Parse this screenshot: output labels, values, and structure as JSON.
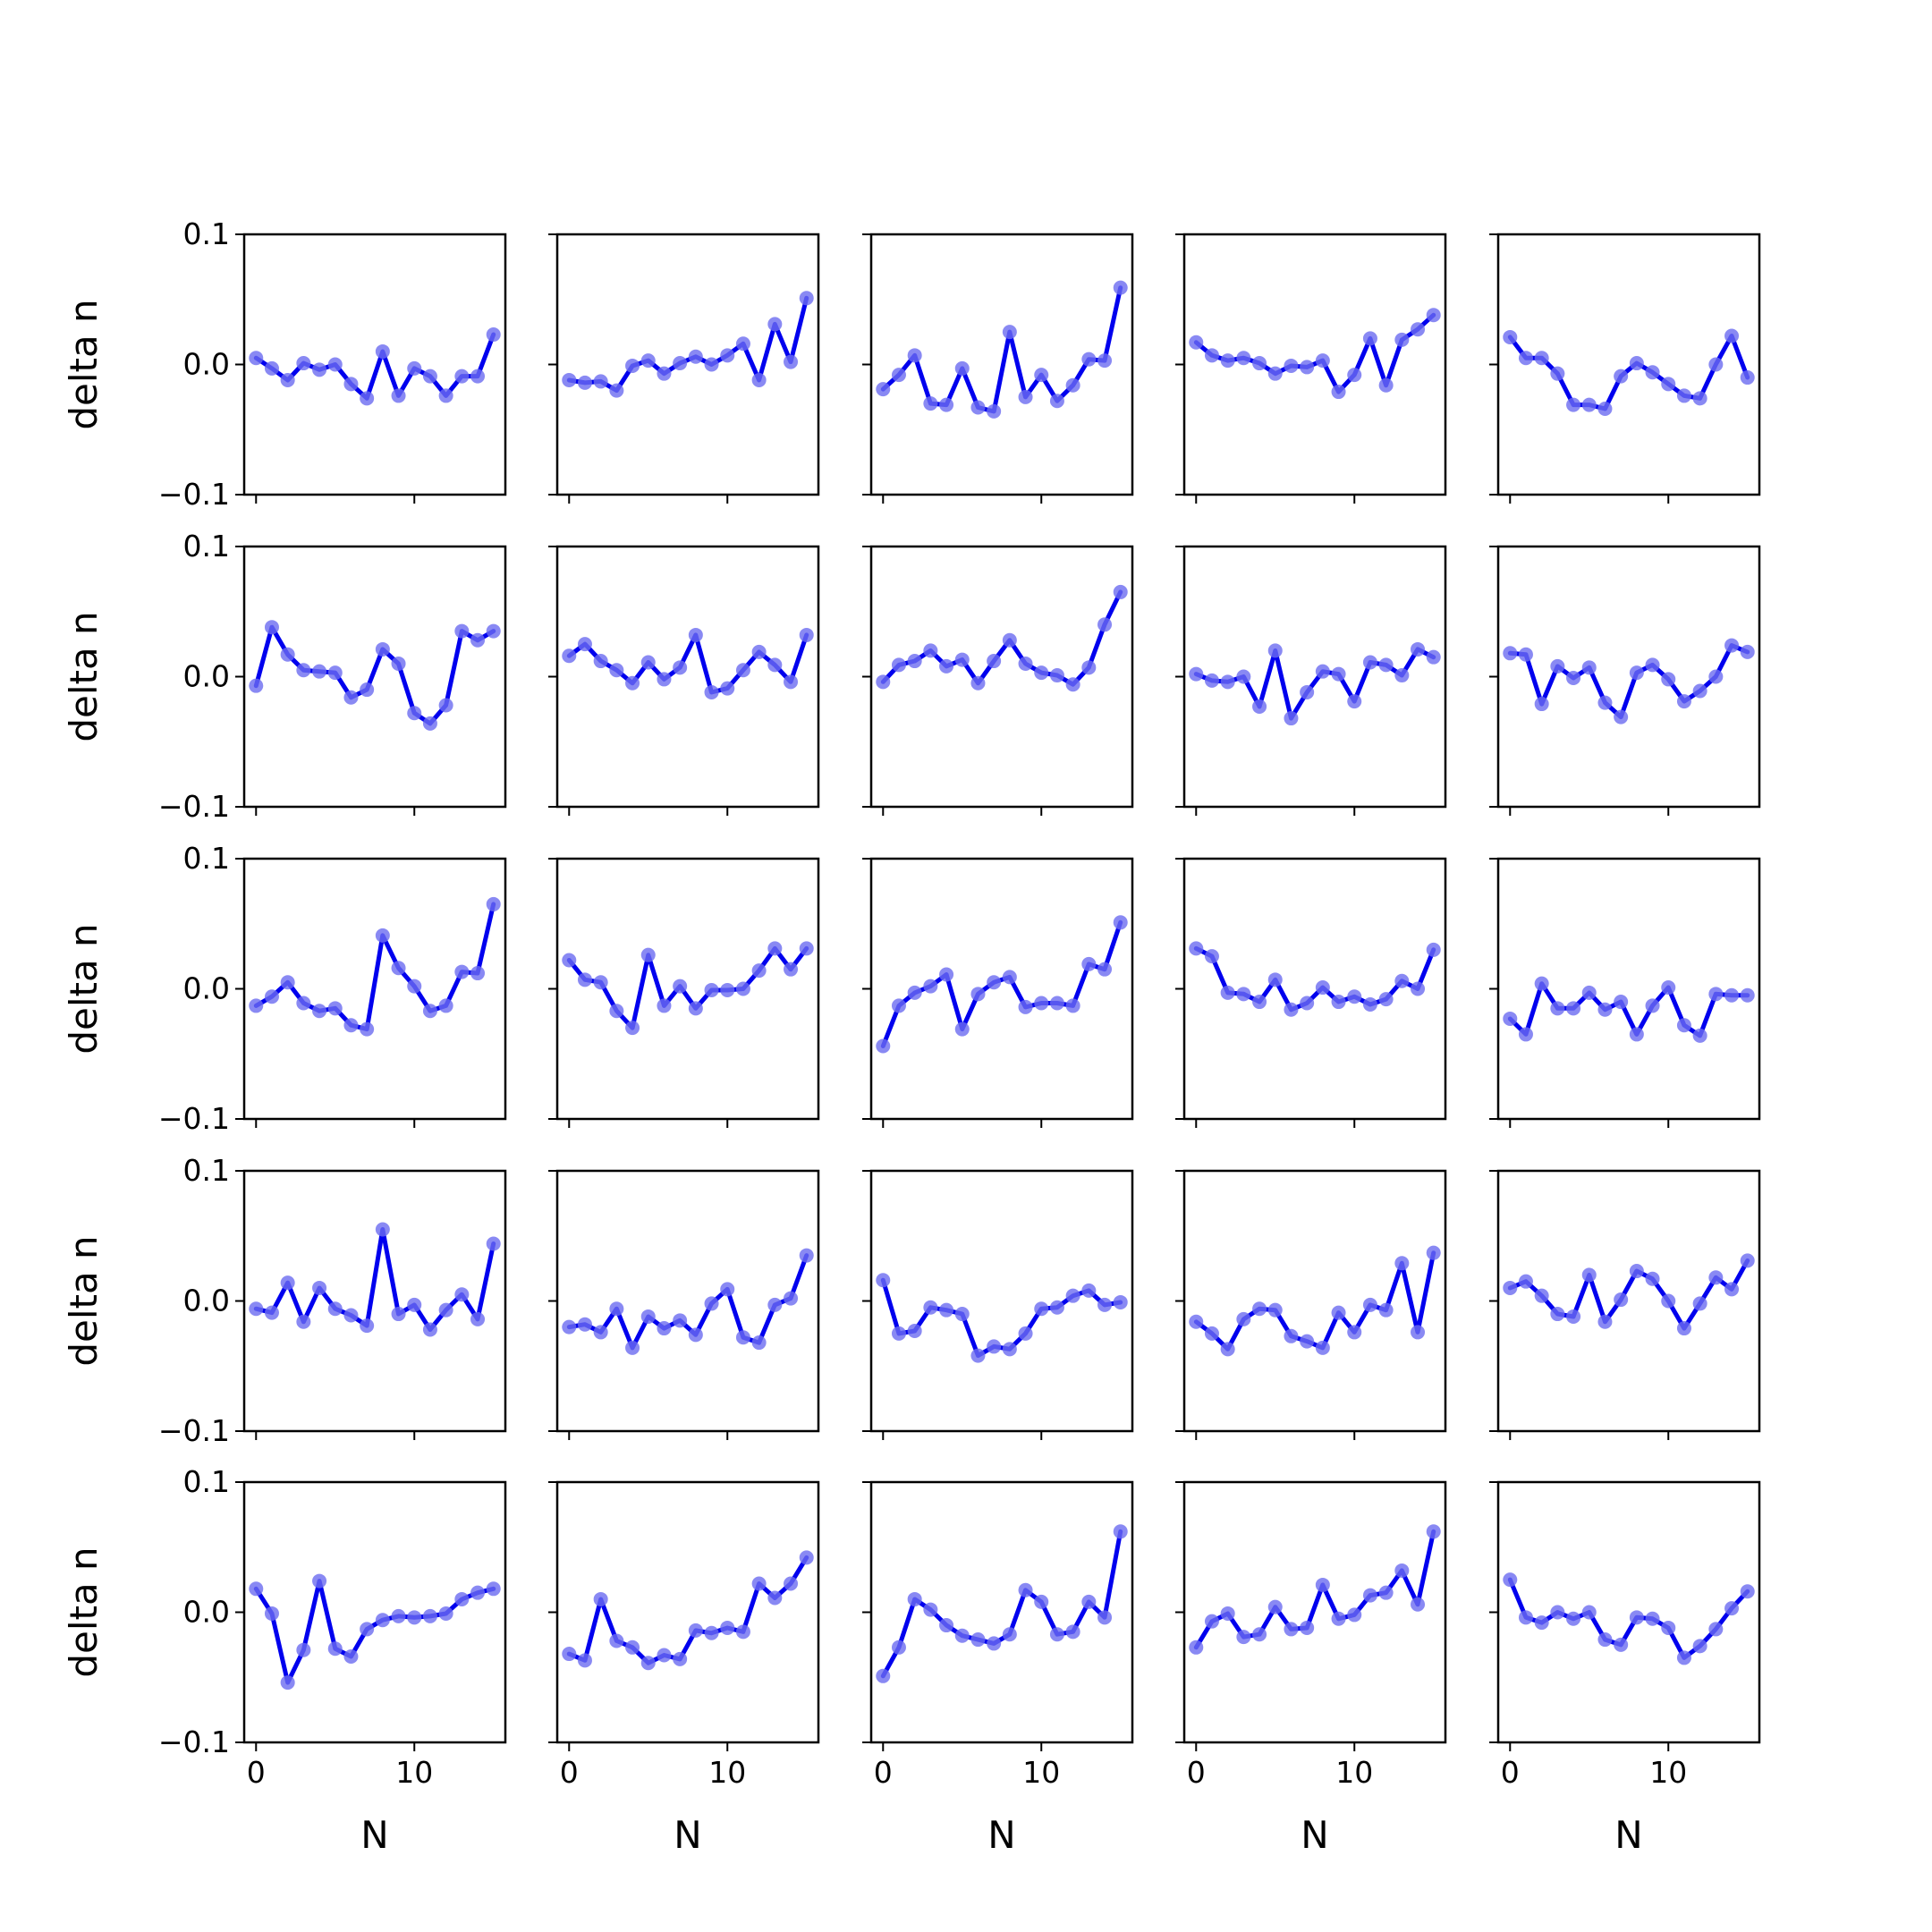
{
  "chart_data": {
    "type": "line",
    "layout": "5x5 grid of small-multiple line plots",
    "xlabel": "N",
    "ylabel": "delta n",
    "xlim": [
      -0.75,
      15.75
    ],
    "ylim": [
      -0.1,
      0.1
    ],
    "x_ticks": [
      0,
      10
    ],
    "y_ticks": [
      -0.1,
      0.0,
      0.1
    ],
    "x_tick_labels": [
      "0",
      "10"
    ],
    "y_tick_labels": [
      "−0.1",
      "0.0",
      "0.1"
    ],
    "x": [
      0,
      1,
      2,
      3,
      4,
      5,
      6,
      7,
      8,
      9,
      10,
      11,
      12,
      13,
      14,
      15
    ],
    "line_color": "#0000ee",
    "marker_color": "#6b6bf0",
    "grid": false,
    "panels": [
      [
        0.005,
        -0.003,
        -0.012,
        0.001,
        -0.004,
        0.0,
        -0.015,
        -0.026,
        0.01,
        -0.024,
        -0.003,
        -0.009,
        -0.024,
        -0.009,
        -0.009,
        0.023
      ],
      [
        -0.012,
        -0.014,
        -0.013,
        -0.02,
        -0.001,
        0.003,
        -0.007,
        0.001,
        0.006,
        0.0,
        0.007,
        0.016,
        -0.012,
        0.031,
        0.002,
        0.051
      ],
      [
        -0.019,
        -0.008,
        0.007,
        -0.03,
        -0.031,
        -0.003,
        -0.033,
        -0.036,
        0.025,
        -0.025,
        -0.008,
        -0.028,
        -0.016,
        0.004,
        0.003,
        0.059
      ],
      [
        0.017,
        0.007,
        0.003,
        0.005,
        0.001,
        -0.007,
        -0.001,
        -0.002,
        0.003,
        -0.021,
        -0.008,
        0.02,
        -0.016,
        0.019,
        0.027,
        0.038
      ],
      [
        0.021,
        0.005,
        0.005,
        -0.007,
        -0.031,
        -0.031,
        -0.034,
        -0.009,
        0.001,
        -0.006,
        -0.015,
        -0.024,
        -0.026,
        0.0,
        0.022,
        -0.01
      ],
      [
        -0.007,
        0.038,
        0.017,
        0.005,
        0.004,
        0.003,
        -0.016,
        -0.01,
        0.021,
        0.01,
        -0.028,
        -0.036,
        -0.022,
        0.035,
        0.028,
        0.035
      ],
      [
        0.016,
        0.025,
        0.012,
        0.005,
        -0.005,
        0.011,
        -0.002,
        0.007,
        0.032,
        -0.012,
        -0.009,
        0.005,
        0.019,
        0.009,
        -0.004,
        0.032
      ],
      [
        -0.004,
        0.009,
        0.012,
        0.02,
        0.008,
        0.013,
        -0.005,
        0.012,
        0.028,
        0.01,
        0.003,
        0.001,
        -0.006,
        0.007,
        0.04,
        0.065
      ],
      [
        0.002,
        -0.003,
        -0.004,
        0.0,
        -0.023,
        0.02,
        -0.032,
        -0.012,
        0.004,
        0.002,
        -0.019,
        0.011,
        0.009,
        0.001,
        0.021,
        0.015
      ],
      [
        0.018,
        0.017,
        -0.021,
        0.008,
        -0.001,
        0.007,
        -0.02,
        -0.031,
        0.003,
        0.009,
        -0.002,
        -0.019,
        -0.011,
        0.0,
        0.024,
        0.019
      ],
      [
        -0.013,
        -0.006,
        0.005,
        -0.011,
        -0.017,
        -0.015,
        -0.028,
        -0.031,
        0.041,
        0.016,
        0.002,
        -0.017,
        -0.013,
        0.013,
        0.012,
        0.065
      ],
      [
        0.022,
        0.007,
        0.005,
        -0.017,
        -0.03,
        0.026,
        -0.013,
        0.002,
        -0.015,
        -0.001,
        -0.001,
        0.0,
        0.014,
        0.031,
        0.015,
        0.031
      ],
      [
        -0.044,
        -0.013,
        -0.003,
        0.002,
        0.011,
        -0.031,
        -0.004,
        0.005,
        0.009,
        -0.014,
        -0.011,
        -0.011,
        -0.013,
        0.019,
        0.015,
        0.051
      ],
      [
        0.031,
        0.025,
        -0.003,
        -0.004,
        -0.01,
        0.007,
        -0.016,
        -0.011,
        0.001,
        -0.01,
        -0.006,
        -0.012,
        -0.008,
        0.006,
        0.0,
        0.03
      ],
      [
        -0.023,
        -0.035,
        0.004,
        -0.015,
        -0.015,
        -0.003,
        -0.016,
        -0.01,
        -0.035,
        -0.013,
        0.001,
        -0.028,
        -0.036,
        -0.004,
        -0.005,
        -0.005
      ],
      [
        -0.006,
        -0.009,
        0.014,
        -0.016,
        0.01,
        -0.006,
        -0.011,
        -0.019,
        0.055,
        -0.01,
        -0.003,
        -0.022,
        -0.007,
        0.005,
        -0.014,
        0.044
      ],
      [
        -0.02,
        -0.018,
        -0.024,
        -0.006,
        -0.036,
        -0.012,
        -0.021,
        -0.015,
        -0.026,
        -0.002,
        0.009,
        -0.028,
        -0.032,
        -0.003,
        0.002,
        0.035
      ],
      [
        0.016,
        -0.025,
        -0.023,
        -0.005,
        -0.007,
        -0.01,
        -0.042,
        -0.035,
        -0.037,
        -0.025,
        -0.006,
        -0.005,
        0.004,
        0.008,
        -0.003,
        -0.001
      ],
      [
        -0.016,
        -0.025,
        -0.037,
        -0.014,
        -0.006,
        -0.007,
        -0.027,
        -0.031,
        -0.036,
        -0.009,
        -0.024,
        -0.003,
        -0.007,
        0.029,
        -0.024,
        0.037
      ],
      [
        0.01,
        0.015,
        0.004,
        -0.01,
        -0.012,
        0.02,
        -0.016,
        0.001,
        0.023,
        0.017,
        0.0,
        -0.021,
        -0.002,
        0.018,
        0.009,
        0.031
      ],
      [
        0.018,
        -0.001,
        -0.054,
        -0.029,
        0.024,
        -0.028,
        -0.034,
        -0.013,
        -0.006,
        -0.003,
        -0.004,
        -0.003,
        -0.001,
        0.01,
        0.015,
        0.018
      ],
      [
        -0.032,
        -0.037,
        0.01,
        -0.022,
        -0.027,
        -0.039,
        -0.033,
        -0.036,
        -0.014,
        -0.016,
        -0.012,
        -0.015,
        0.022,
        0.011,
        0.022,
        0.042
      ],
      [
        -0.049,
        -0.027,
        0.01,
        0.002,
        -0.01,
        -0.018,
        -0.021,
        -0.024,
        -0.017,
        0.017,
        0.008,
        -0.017,
        -0.015,
        0.008,
        -0.004,
        0.062
      ],
      [
        -0.027,
        -0.007,
        -0.001,
        -0.019,
        -0.017,
        0.004,
        -0.013,
        -0.012,
        0.021,
        -0.005,
        -0.002,
        0.013,
        0.015,
        0.032,
        0.006,
        0.062
      ],
      [
        0.025,
        -0.004,
        -0.008,
        0.0,
        -0.005,
        0.0,
        -0.021,
        -0.025,
        -0.004,
        -0.005,
        -0.012,
        -0.035,
        -0.026,
        -0.013,
        0.003,
        0.016
      ]
    ]
  }
}
